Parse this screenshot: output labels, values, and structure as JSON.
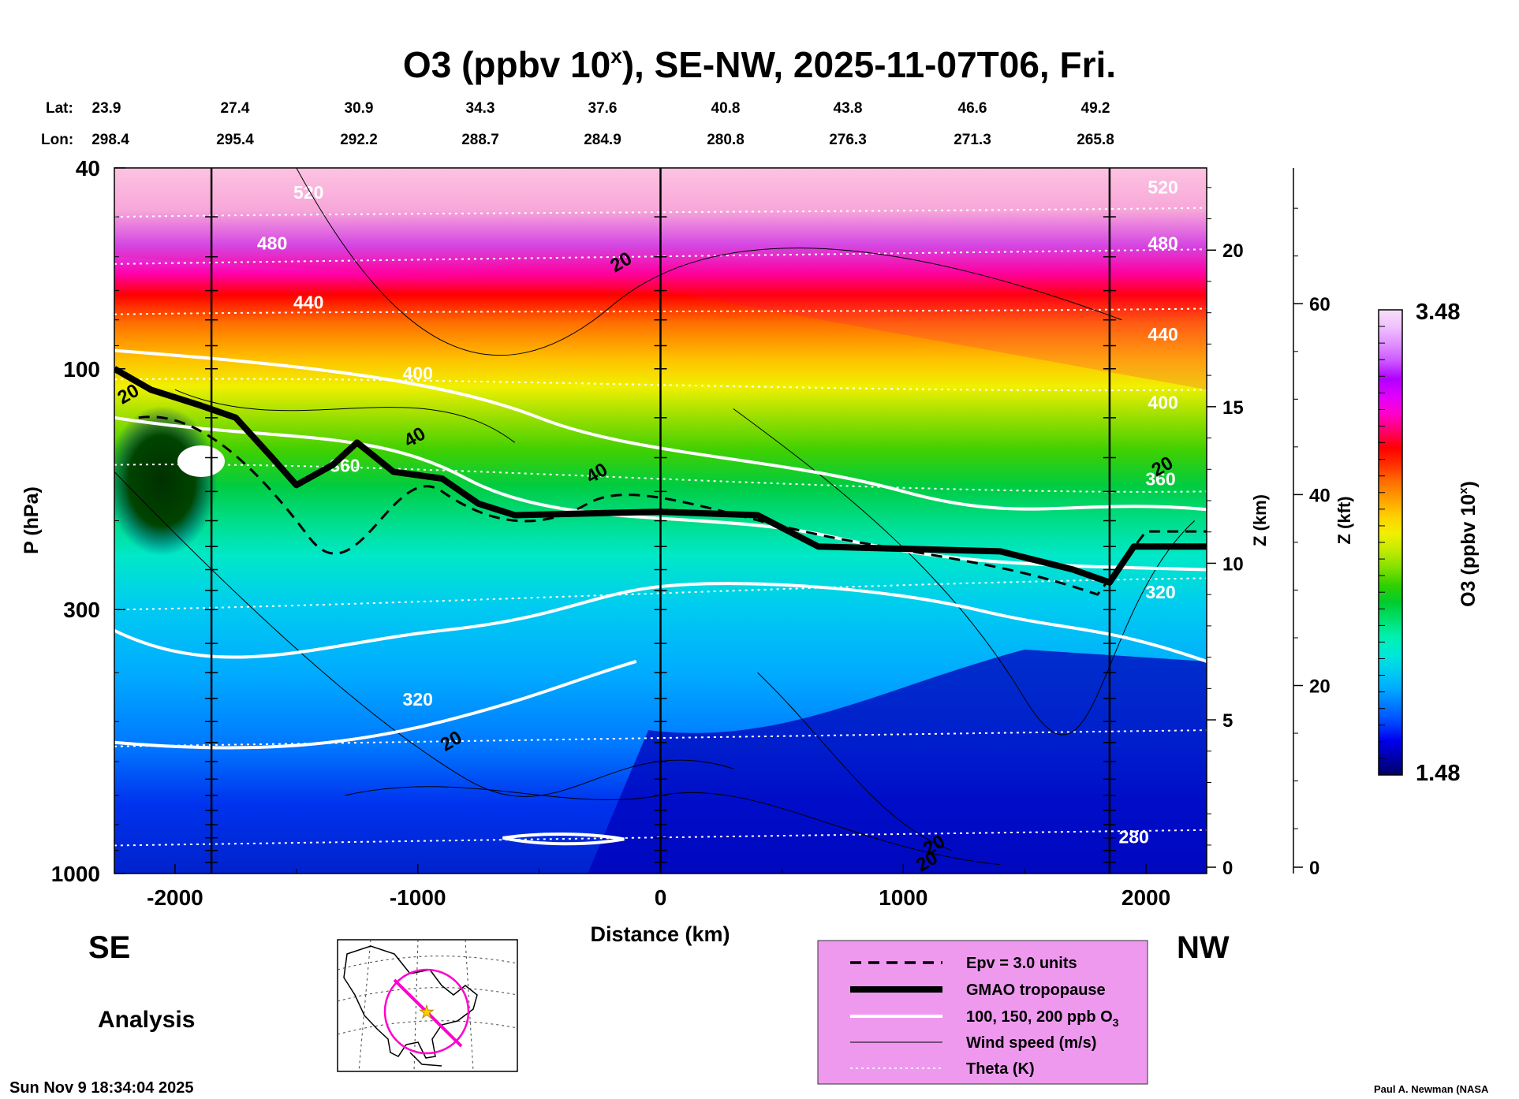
{
  "chart_data": {
    "type": "heatmap",
    "title_main": "O3 (ppbv 10",
    "title_sup": "x",
    "title_rest": "), SE-NW, 2025-11-07T06, Fri.",
    "lat_label": "Lat:",
    "lon_label": "Lon:",
    "lats": [
      "23.9",
      "27.4",
      "30.9",
      "34.3",
      "37.6",
      "40.8",
      "43.8",
      "46.6",
      "49.2"
    ],
    "lons": [
      "298.4",
      "295.4",
      "292.2",
      "288.7",
      "284.9",
      "280.8",
      "276.3",
      "271.3",
      "265.8"
    ],
    "xlabel": "Distance (km)",
    "xlim": [
      -2250,
      2250
    ],
    "xticks": [
      -2000,
      -1000,
      0,
      1000,
      2000
    ],
    "xtick_labels": [
      "-2000",
      "-1000",
      "0",
      "1000",
      "2000"
    ],
    "ylabel": "P (hPa)",
    "ylim": [
      1000,
      40
    ],
    "yticks": [
      40,
      100,
      300,
      1000
    ],
    "ytick_labels": [
      "40",
      "100",
      "300",
      "1000"
    ],
    "z_km_label": "Z (km)",
    "z_km_ticks": [
      "20",
      "15",
      "10",
      "5",
      "0"
    ],
    "z_kft_label": "Z (kft)",
    "z_kft_ticks": [
      "60",
      "40",
      "20",
      "0"
    ],
    "direction_left": "SE",
    "direction_right": "NW",
    "vertical_lines_km": [
      -1850,
      0,
      1850
    ],
    "colorbar": {
      "label_main": "O3 (ppbv 10",
      "label_sup": "x",
      "label_end": ")",
      "min_label": "1.48",
      "max_label": "3.48",
      "colors": [
        "#000066",
        "#0000aa",
        "#0000ee",
        "#0044ff",
        "#0077ff",
        "#00aaff",
        "#00ccf0",
        "#00e8d8",
        "#00f0b0",
        "#00e070",
        "#00cc30",
        "#30d000",
        "#80e000",
        "#c0ea00",
        "#f0f000",
        "#ffd000",
        "#ffa000",
        "#ff7000",
        "#ff3000",
        "#ff0000",
        "#ff0070",
        "#ff00cc",
        "#e000ff",
        "#b000ff",
        "#cc55ff",
        "#e090ff",
        "#f0c0ff",
        "#f8e0f8"
      ]
    },
    "theta_labels": [
      "520",
      "480",
      "440",
      "400",
      "360",
      "320",
      "280",
      "320",
      "360",
      "400",
      "440",
      "480",
      "520"
    ],
    "wind_labels": [
      "20",
      "20",
      "40",
      "40",
      "20",
      "20",
      "20",
      "20"
    ],
    "legend": [
      {
        "style": "dashed",
        "label": "Epv = 3.0 units"
      },
      {
        "style": "thick",
        "label": "GMAO tropopause"
      },
      {
        "style": "white",
        "label": "100, 150, 200 ppb O",
        "sub": "3"
      },
      {
        "style": "thin",
        "label": "Wind speed (m/s)"
      },
      {
        "style": "dotted",
        "label": "Theta (K)"
      }
    ],
    "analysis_label": "Analysis",
    "timestamp": "Sun Nov  9 18:34:04 2025",
    "credit": "Paul A. Newman (NASA"
  }
}
